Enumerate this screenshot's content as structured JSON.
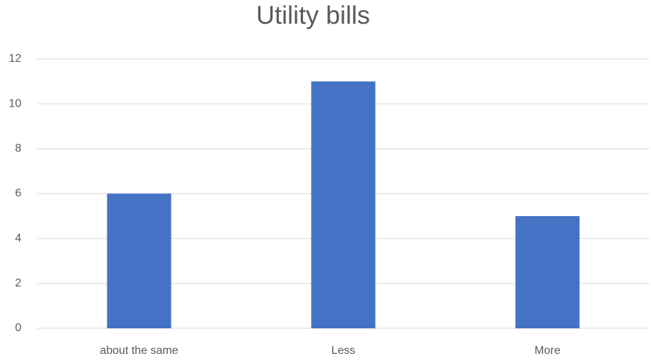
{
  "chart_data": {
    "type": "bar",
    "title": "Utility bills",
    "categories": [
      "about the same",
      "Less",
      "More"
    ],
    "values": [
      6,
      11,
      5
    ],
    "color": "#4472c4",
    "ylim": [
      0,
      12
    ],
    "yticks": [
      0,
      2,
      4,
      6,
      8,
      10,
      12
    ],
    "grid": true
  }
}
